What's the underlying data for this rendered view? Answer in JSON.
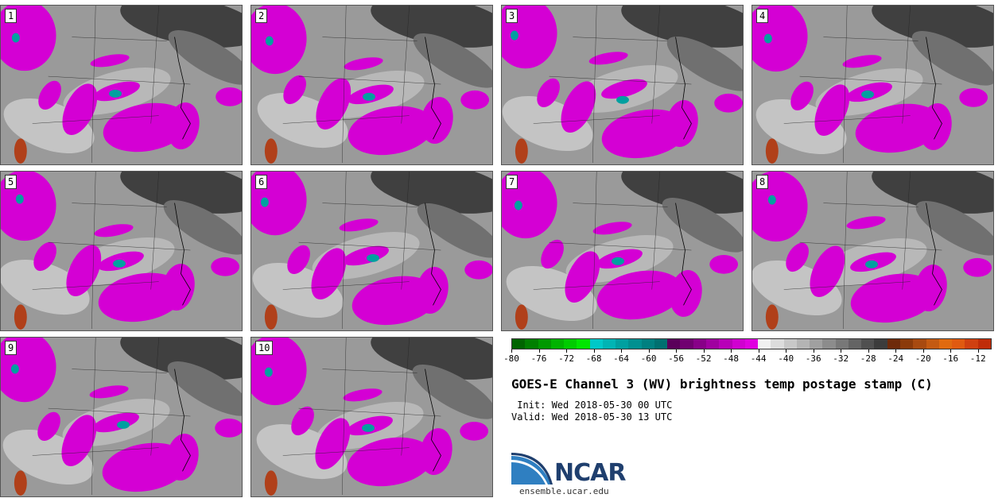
{
  "panels": [
    {
      "label": "1"
    },
    {
      "label": "2"
    },
    {
      "label": "3"
    },
    {
      "label": "4"
    },
    {
      "label": "5"
    },
    {
      "label": "6"
    },
    {
      "label": "7"
    },
    {
      "label": "8"
    },
    {
      "label": "9"
    },
    {
      "label": "10"
    }
  ],
  "colorbar": {
    "colors": [
      "#006400",
      "#007f00",
      "#009900",
      "#00b300",
      "#00cc00",
      "#00e600",
      "#00c8c8",
      "#00b4b4",
      "#00a0a0",
      "#009090",
      "#008080",
      "#007070",
      "#5a005a",
      "#700070",
      "#880088",
      "#a000a0",
      "#b800b8",
      "#d000d0",
      "#e000e0",
      "#f0f0f0",
      "#dcdcdc",
      "#c8c8c8",
      "#b4b4b4",
      "#a0a0a0",
      "#8c8c8c",
      "#787878",
      "#646464",
      "#505050",
      "#3c3c3c",
      "#6e2a0a",
      "#8b3a0a",
      "#a84a10",
      "#c45a12",
      "#e06a10",
      "#e05a10",
      "#d04010",
      "#c02c08"
    ],
    "ticks": [
      "-80",
      "-76",
      "-72",
      "-68",
      "-64",
      "-60",
      "-56",
      "-52",
      "-48",
      "-44",
      "-40",
      "-36",
      "-32",
      "-28",
      "-24",
      "-20",
      "-16",
      "-12"
    ],
    "range": [
      -80,
      -10
    ],
    "unit": "C"
  },
  "title": "GOES-E Channel 3 (WV) brightness temp postage stamp (C)",
  "init": " Init: Wed 2018-05-30 00 UTC",
  "valid": "Valid: Wed 2018-05-30 13 UTC",
  "logo_text": "NCAR",
  "site": "ensemble.ucar.edu",
  "colors": {
    "moist": "#d400d4",
    "dry": "#404040",
    "mid": "#9a9a9a",
    "cold": "#00a0a0",
    "warm": "#b0401a"
  }
}
